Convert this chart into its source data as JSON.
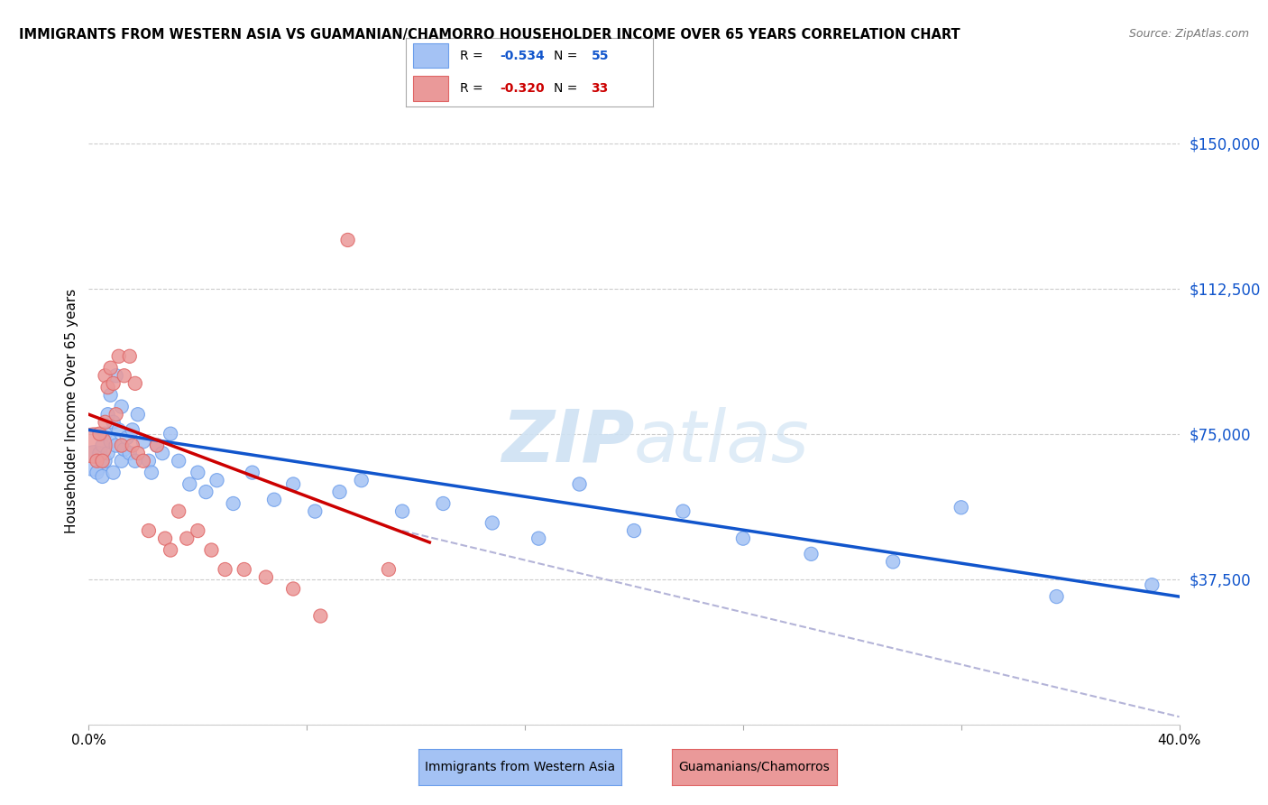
{
  "title": "IMMIGRANTS FROM WESTERN ASIA VS GUAMANIAN/CHAMORRO HOUSEHOLDER INCOME OVER 65 YEARS CORRELATION CHART",
  "source": "Source: ZipAtlas.com",
  "ylabel": "Householder Income Over 65 years",
  "y_ticks": [
    0,
    37500,
    75000,
    112500,
    150000
  ],
  "y_tick_labels": [
    "",
    "$37,500",
    "$75,000",
    "$112,500",
    "$150,000"
  ],
  "ylim": [
    0,
    162000
  ],
  "xlim": [
    0.0,
    0.4
  ],
  "x_ticks": [
    0.0,
    0.08,
    0.16,
    0.24,
    0.32,
    0.4
  ],
  "x_tick_labels": [
    "0.0%",
    "",
    "",
    "",
    "",
    "40.0%"
  ],
  "legend_blue_r": "-0.534",
  "legend_blue_n": "55",
  "legend_pink_r": "-0.320",
  "legend_pink_n": "33",
  "blue_color": "#a4c2f4",
  "pink_color": "#ea9999",
  "blue_edge_color": "#6d9eeb",
  "pink_edge_color": "#e06666",
  "blue_line_color": "#1155cc",
  "pink_line_color": "#cc0000",
  "dashed_line_color": "#b4b4d8",
  "right_label_color": "#1155cc",
  "watermark_color": "#cfe2f3",
  "blue_scatter_x": [
    0.002,
    0.003,
    0.004,
    0.005,
    0.005,
    0.006,
    0.006,
    0.007,
    0.007,
    0.008,
    0.008,
    0.009,
    0.009,
    0.01,
    0.01,
    0.011,
    0.012,
    0.012,
    0.013,
    0.014,
    0.015,
    0.016,
    0.017,
    0.018,
    0.02,
    0.022,
    0.023,
    0.025,
    0.027,
    0.03,
    0.033,
    0.037,
    0.04,
    0.043,
    0.047,
    0.053,
    0.06,
    0.068,
    0.075,
    0.083,
    0.092,
    0.1,
    0.115,
    0.13,
    0.148,
    0.165,
    0.18,
    0.2,
    0.218,
    0.24,
    0.265,
    0.295,
    0.32,
    0.355,
    0.39
  ],
  "blue_scatter_y": [
    68000,
    65000,
    70000,
    72000,
    64000,
    68000,
    75000,
    80000,
    70000,
    85000,
    73000,
    78000,
    65000,
    90000,
    72000,
    76000,
    68000,
    82000,
    71000,
    74000,
    70000,
    76000,
    68000,
    80000,
    73000,
    68000,
    65000,
    72000,
    70000,
    75000,
    68000,
    62000,
    65000,
    60000,
    63000,
    57000,
    65000,
    58000,
    62000,
    55000,
    60000,
    63000,
    55000,
    57000,
    52000,
    48000,
    62000,
    50000,
    55000,
    48000,
    44000,
    42000,
    56000,
    33000,
    36000
  ],
  "blue_scatter_size": [
    500,
    30,
    25,
    30,
    25,
    25,
    25,
    25,
    25,
    25,
    25,
    25,
    25,
    25,
    25,
    25,
    25,
    25,
    25,
    25,
    25,
    25,
    25,
    25,
    25,
    25,
    25,
    25,
    25,
    25,
    25,
    25,
    25,
    25,
    25,
    25,
    25,
    25,
    25,
    25,
    25,
    25,
    25,
    25,
    25,
    25,
    25,
    25,
    25,
    25,
    25,
    25,
    25,
    25,
    25
  ],
  "pink_scatter_x": [
    0.002,
    0.003,
    0.004,
    0.005,
    0.006,
    0.006,
    0.007,
    0.008,
    0.009,
    0.01,
    0.011,
    0.012,
    0.013,
    0.015,
    0.016,
    0.017,
    0.018,
    0.02,
    0.022,
    0.025,
    0.028,
    0.03,
    0.033,
    0.036,
    0.04,
    0.045,
    0.05,
    0.057,
    0.065,
    0.075,
    0.085,
    0.095,
    0.11
  ],
  "pink_scatter_y": [
    72000,
    68000,
    75000,
    68000,
    78000,
    90000,
    87000,
    92000,
    88000,
    80000,
    95000,
    72000,
    90000,
    95000,
    72000,
    88000,
    70000,
    68000,
    50000,
    72000,
    48000,
    45000,
    55000,
    48000,
    50000,
    45000,
    40000,
    40000,
    38000,
    35000,
    28000,
    125000,
    40000
  ],
  "pink_scatter_size": [
    800,
    30,
    25,
    25,
    25,
    25,
    25,
    25,
    25,
    25,
    25,
    25,
    25,
    25,
    25,
    25,
    25,
    25,
    25,
    25,
    25,
    25,
    25,
    25,
    25,
    25,
    25,
    25,
    25,
    25,
    25,
    25,
    25
  ],
  "blue_trend_x": [
    0.0,
    0.4
  ],
  "blue_trend_y": [
    76000,
    33000
  ],
  "pink_trend_x": [
    0.0,
    0.125
  ],
  "pink_trend_y": [
    80000,
    47000
  ],
  "dash_trend_x": [
    0.115,
    0.4
  ],
  "dash_trend_y": [
    50000,
    2000
  ]
}
